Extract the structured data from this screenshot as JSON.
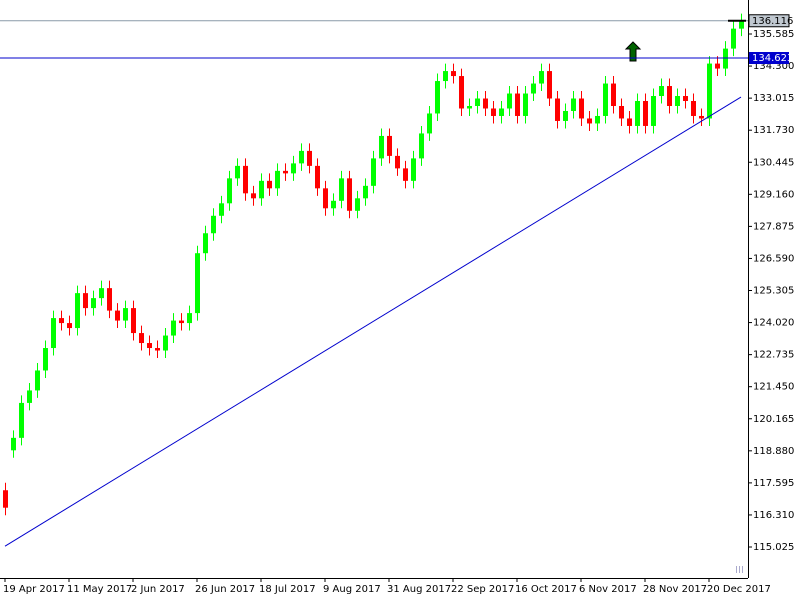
{
  "chart_data": {
    "type": "candlestick",
    "categories": [
      "19 Apr 2017",
      null,
      null,
      null,
      null,
      null,
      null,
      null,
      "11 May 2017",
      null,
      null,
      null,
      null,
      null,
      null,
      null,
      "2 Jun 2017",
      null,
      null,
      null,
      null,
      null,
      null,
      null,
      "26 Jun 2017",
      null,
      null,
      null,
      null,
      null,
      null,
      null,
      "18 Jul 2017",
      null,
      null,
      null,
      null,
      null,
      null,
      null,
      "9 Aug 2017",
      null,
      null,
      null,
      null,
      null,
      null,
      null,
      "31 Aug 2017",
      null,
      null,
      null,
      null,
      null,
      null,
      null,
      "22 Sep 2017",
      null,
      null,
      null,
      null,
      null,
      null,
      null,
      "16 Oct 2017",
      null,
      null,
      null,
      null,
      null,
      null,
      null,
      "6 Nov 2017",
      null,
      null,
      null,
      null,
      null,
      null,
      null,
      "28 Nov 2017",
      null,
      null,
      null,
      null,
      null,
      null,
      null,
      "20 Dec 2017",
      null,
      null,
      null,
      null
    ],
    "open": [
      117.3,
      118.9,
      119.4,
      120.8,
      121.3,
      122.1,
      123.0,
      124.2,
      124.0,
      123.8,
      125.2,
      124.6,
      125.0,
      125.4,
      124.5,
      124.1,
      124.6,
      123.6,
      123.2,
      123.0,
      122.9,
      123.5,
      124.1,
      124.0,
      124.4,
      126.8,
      127.6,
      128.3,
      128.8,
      129.8,
      130.3,
      129.2,
      129.0,
      129.7,
      129.4,
      130.1,
      130.0,
      130.4,
      130.9,
      130.3,
      129.4,
      128.6,
      128.9,
      129.8,
      128.5,
      129.0,
      129.5,
      130.6,
      131.5,
      130.7,
      130.2,
      129.7,
      130.6,
      131.6,
      132.4,
      133.7,
      134.1,
      133.9,
      132.6,
      132.7,
      133.0,
      132.6,
      132.3,
      132.6,
      133.2,
      132.3,
      133.2,
      133.6,
      134.1,
      133.0,
      132.1,
      132.5,
      133.0,
      132.2,
      132.0,
      132.3,
      133.6,
      132.7,
      132.2,
      131.9,
      132.9,
      131.9,
      133.1,
      133.5,
      132.7,
      133.1,
      132.9,
      132.3,
      132.2,
      134.4,
      134.2,
      135.0,
      135.8
    ],
    "high": [
      117.6,
      119.7,
      121.1,
      121.6,
      122.4,
      123.3,
      124.5,
      124.5,
      124.3,
      125.5,
      125.5,
      125.3,
      125.7,
      125.7,
      124.8,
      124.9,
      124.9,
      123.9,
      123.5,
      123.3,
      123.8,
      124.4,
      124.4,
      124.7,
      127.1,
      127.9,
      128.6,
      129.1,
      130.1,
      130.6,
      130.6,
      129.5,
      130.0,
      130.0,
      130.4,
      130.4,
      130.7,
      131.2,
      131.2,
      130.6,
      129.7,
      129.2,
      130.1,
      130.1,
      129.3,
      129.8,
      130.9,
      131.8,
      131.8,
      131.0,
      130.5,
      130.9,
      131.9,
      132.7,
      134.0,
      134.4,
      134.4,
      134.2,
      133.0,
      133.3,
      133.3,
      132.9,
      132.9,
      133.5,
      133.5,
      133.5,
      133.9,
      134.4,
      134.4,
      133.3,
      132.8,
      133.3,
      133.3,
      132.5,
      132.6,
      133.9,
      133.9,
      133.0,
      132.5,
      133.2,
      133.2,
      133.4,
      133.8,
      133.8,
      133.4,
      133.4,
      133.2,
      132.6,
      134.7,
      134.7,
      135.3,
      136.1,
      136.4
    ],
    "low": [
      116.3,
      118.6,
      119.1,
      120.5,
      121.0,
      121.8,
      122.7,
      123.7,
      123.5,
      123.5,
      124.3,
      124.3,
      124.7,
      124.2,
      123.8,
      123.8,
      123.3,
      122.9,
      122.7,
      122.6,
      122.6,
      123.2,
      123.7,
      123.7,
      124.1,
      126.5,
      127.3,
      128.0,
      128.5,
      129.5,
      128.9,
      128.7,
      128.7,
      129.1,
      129.1,
      129.7,
      129.7,
      130.1,
      130.0,
      129.1,
      128.3,
      128.3,
      128.6,
      128.2,
      128.2,
      128.7,
      129.2,
      130.3,
      130.4,
      129.9,
      129.4,
      129.4,
      130.3,
      131.3,
      132.1,
      133.4,
      133.6,
      132.3,
      132.3,
      132.4,
      132.3,
      132.0,
      132.0,
      132.3,
      132.0,
      132.0,
      132.9,
      133.3,
      132.7,
      131.8,
      131.8,
      132.2,
      131.9,
      131.7,
      131.7,
      132.0,
      132.4,
      131.9,
      131.6,
      131.6,
      131.6,
      131.6,
      132.8,
      132.4,
      132.4,
      132.6,
      132.0,
      131.9,
      131.9,
      133.9,
      133.9,
      134.7,
      135.5
    ],
    "close": [
      116.6,
      119.4,
      120.8,
      121.3,
      122.1,
      123.0,
      124.2,
      124.0,
      123.8,
      125.2,
      124.6,
      125.0,
      125.4,
      124.5,
      124.1,
      124.6,
      123.6,
      123.2,
      123.0,
      122.9,
      123.5,
      124.1,
      124.0,
      124.4,
      126.8,
      127.6,
      128.3,
      128.8,
      129.8,
      130.3,
      129.2,
      129.0,
      129.7,
      129.4,
      130.1,
      130.0,
      130.4,
      130.9,
      130.3,
      129.4,
      128.6,
      128.9,
      129.8,
      128.5,
      129.0,
      129.5,
      130.6,
      131.5,
      130.7,
      130.2,
      129.7,
      130.6,
      131.6,
      132.4,
      133.7,
      134.1,
      133.9,
      132.6,
      132.7,
      133.0,
      132.6,
      132.3,
      132.6,
      133.2,
      132.3,
      133.2,
      133.6,
      134.1,
      133.0,
      132.1,
      132.5,
      133.0,
      132.2,
      132.0,
      132.3,
      133.6,
      132.7,
      132.2,
      131.9,
      132.9,
      131.9,
      133.1,
      133.5,
      132.7,
      133.1,
      132.9,
      132.3,
      132.2,
      134.4,
      134.2,
      135.0,
      135.8,
      136.1
    ],
    "ylim": [
      113.783,
      136.948
    ],
    "yticks": [
      135.585,
      {
        "value": 134.3,
        "label": "134.300"
      },
      133.015,
      {
        "value": 131.73,
        "label": "131.730"
      },
      130.445,
      {
        "value": 129.16,
        "label": "129.160"
      },
      127.875,
      {
        "value": 126.59,
        "label": "126.590"
      },
      125.305,
      {
        "value": 124.02,
        "label": "124.020"
      },
      122.735,
      {
        "value": 121.45,
        "label": "121.450"
      },
      120.165,
      {
        "value": 118.88,
        "label": "118.880"
      },
      117.595,
      {
        "value": 116.31,
        "label": "116.310"
      },
      115.025
    ],
    "price_line": 136.116,
    "level": 134.623,
    "trendline": [
      115.06,
      133.06
    ],
    "up_color": "#00ff00",
    "down_color": "#ff0000",
    "line_color": "#0000cd"
  }
}
